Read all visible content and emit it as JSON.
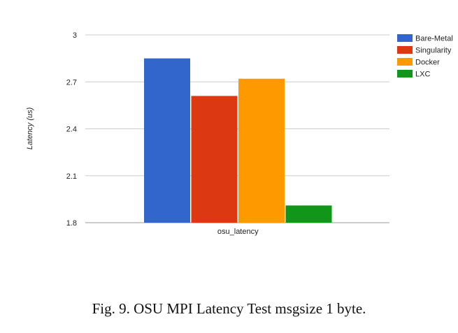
{
  "chart_data": {
    "type": "bar",
    "title": "",
    "xlabel": "",
    "ylabel": "Latency (us)",
    "categories": [
      "osu_latency"
    ],
    "series": [
      {
        "name": "Bare-Metal",
        "values": [
          2.85
        ],
        "color": "#3366cc"
      },
      {
        "name": "Singularity",
        "values": [
          2.61
        ],
        "color": "#dc3912"
      },
      {
        "name": "Docker",
        "values": [
          2.72
        ],
        "color": "#ff9900"
      },
      {
        "name": "LXC",
        "values": [
          1.91
        ],
        "color": "#109618"
      }
    ],
    "ylim": [
      1.8,
      3.0
    ],
    "yticks": [
      "1.8",
      "2.1",
      "2.4",
      "2.7",
      "3"
    ],
    "grid": true,
    "legend": "right"
  },
  "caption": "Fig. 9.  OSU MPI Latency Test msgsize 1 byte."
}
